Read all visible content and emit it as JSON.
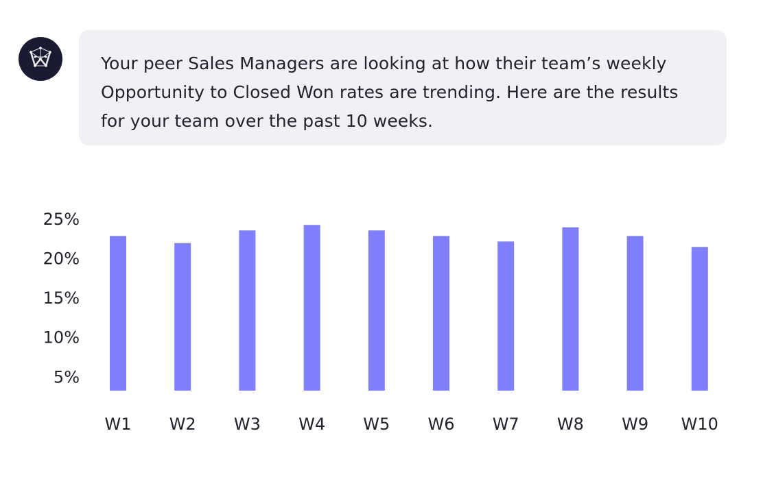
{
  "message": {
    "text": "Your peer Sales Managers are looking at how their team’s weekly Opportunity to Closed Won rates are trending. Here are the results for your team over the past 10 weeks."
  },
  "colors": {
    "bar": "#7f7ffc",
    "avatar_bg": "#1b1a33",
    "bubble_bg": "#f1f0f5"
  },
  "chart_data": {
    "type": "bar",
    "categories": [
      "W1",
      "W2",
      "W3",
      "W4",
      "W5",
      "W6",
      "W7",
      "W8",
      "W9",
      "W10"
    ],
    "values": [
      22.8,
      21.9,
      23.5,
      24.2,
      23.5,
      22.8,
      22.1,
      23.9,
      22.8,
      21.4
    ],
    "ytick_labels": [
      "5%",
      "10%",
      "15%",
      "20%",
      "25%"
    ],
    "yticks": [
      5,
      10,
      15,
      20,
      25
    ],
    "ylim": [
      3.2,
      25
    ],
    "grid": false,
    "legend": "none",
    "title": "",
    "xlabel": "",
    "ylabel": ""
  }
}
